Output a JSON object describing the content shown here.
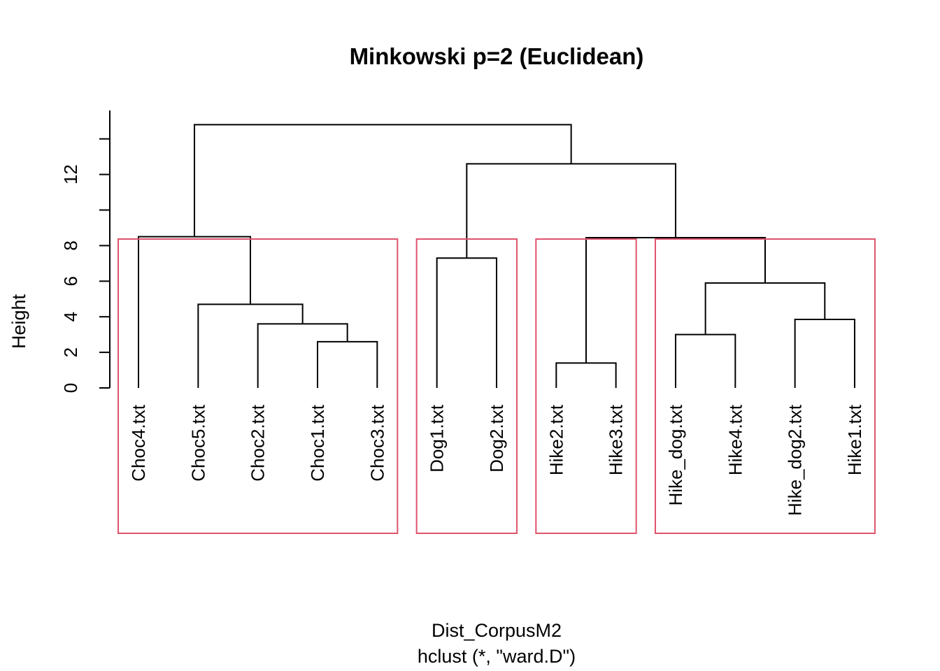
{
  "chart_data": {
    "type": "dendrogram",
    "title": "Minkowski p=2 (Euclidean)",
    "ylabel": "Height",
    "xlabel": "Dist_CorpusM2",
    "sublabel": "hclust (*, \"ward.D\")",
    "ylim": [
      0,
      15.6
    ],
    "yticks": [
      0,
      2,
      4,
      6,
      8,
      10,
      12,
      14
    ],
    "ytick_labels": [
      "0",
      "2",
      "4",
      "6",
      "8",
      "",
      "12",
      ""
    ],
    "leaves": [
      "Choc4.txt",
      "Choc5.txt",
      "Choc2.txt",
      "Choc1.txt",
      "Choc3.txt",
      "Dog1.txt",
      "Dog2.txt",
      "Hike2.txt",
      "Hike3.txt",
      "Hike_dog.txt",
      "Hike4.txt",
      "Hike_dog2.txt",
      "Hike1.txt"
    ],
    "merges": [
      {
        "left": "Hike2.txt",
        "right": "Hike3.txt",
        "height": 1.4
      },
      {
        "left": "Choc1.txt",
        "right": "Choc3.txt",
        "height": 2.6
      },
      {
        "left": "Hike_dog.txt",
        "right": "Hike4.txt",
        "height": 3.0
      },
      {
        "left": "Choc2.txt",
        "right": "merge:2",
        "height": 3.6
      },
      {
        "left": "Hike_dog2.txt",
        "right": "Hike1.txt",
        "height": 3.85
      },
      {
        "left": "Choc5.txt",
        "right": "merge:4",
        "height": 4.7
      },
      {
        "left": "merge:3",
        "right": "merge:5",
        "height": 5.9
      },
      {
        "left": "Dog1.txt",
        "right": "Dog2.txt",
        "height": 7.3
      },
      {
        "left": "merge:1",
        "right": "merge:7",
        "height": 8.45
      },
      {
        "left": "merge:6",
        "right": "Choc4.txt",
        "height": 8.5
      },
      {
        "left": "merge:8",
        "right": "merge:9",
        "height": 12.6
      },
      {
        "left": "merge:10",
        "right": "merge:11",
        "height": 14.8
      }
    ],
    "cluster_boxes": [
      {
        "leaves": [
          "Choc4.txt",
          "Choc5.txt",
          "Choc2.txt",
          "Choc1.txt",
          "Choc3.txt"
        ]
      },
      {
        "leaves": [
          "Dog1.txt",
          "Dog2.txt"
        ]
      },
      {
        "leaves": [
          "Hike2.txt",
          "Hike3.txt"
        ]
      },
      {
        "leaves": [
          "Hike_dog.txt",
          "Hike4.txt",
          "Hike_dog2.txt",
          "Hike1.txt"
        ]
      }
    ],
    "box_color": "#DF536B",
    "line_color": "#000000"
  }
}
